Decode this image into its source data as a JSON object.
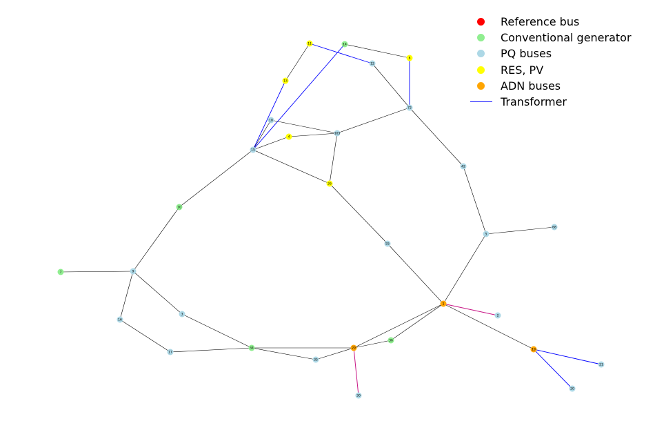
{
  "colors": {
    "reference": "#ff0000",
    "conventional": "#90ee90",
    "pq": "#add8e6",
    "res": "#ffff00",
    "adn": "#ffa500",
    "line": "#000000",
    "transformer": "#0000ff",
    "adn_line": "#c71585"
  },
  "legend": [
    {
      "label": "Reference bus",
      "marker": "dot",
      "color_key": "reference"
    },
    {
      "label": "Conventional generator",
      "marker": "dot",
      "color_key": "conventional"
    },
    {
      "label": "PQ buses",
      "marker": "dot",
      "color_key": "pq"
    },
    {
      "label": "RES, PV",
      "marker": "dot",
      "color_key": "res"
    },
    {
      "label": "ADN buses",
      "marker": "dot",
      "color_key": "adn"
    },
    {
      "label": "Transformer",
      "marker": "line",
      "color_key": "transformer"
    }
  ],
  "nodes": [
    {
      "id": "11",
      "type": "res"
    },
    {
      "id": "14",
      "type": "conventional"
    },
    {
      "id": "8",
      "type": "res"
    },
    {
      "id": "12",
      "type": "pq"
    },
    {
      "id": "13",
      "type": "res"
    },
    {
      "id": "72",
      "type": "pq"
    },
    {
      "id": "18",
      "type": "pq"
    },
    {
      "id": "4",
      "type": "res"
    },
    {
      "id": "103",
      "type": "pq"
    },
    {
      "id": "15",
      "type": "pq"
    },
    {
      "id": "42",
      "type": "pq"
    },
    {
      "id": "26",
      "type": "res"
    },
    {
      "id": "10",
      "type": "conventional"
    },
    {
      "id": "68",
      "type": "pq"
    },
    {
      "id": "5",
      "type": "pq"
    },
    {
      "id": "55",
      "type": "pq"
    },
    {
      "id": "7",
      "type": "conventional"
    },
    {
      "id": "9",
      "type": "pq"
    },
    {
      "id": "1",
      "type": "adn"
    },
    {
      "id": "2",
      "type": "pq"
    },
    {
      "id": "3",
      "type": "pq"
    },
    {
      "id": "16",
      "type": "pq"
    },
    {
      "id": "36",
      "type": "conventional"
    },
    {
      "id": "34",
      "type": "conventional"
    },
    {
      "id": "29",
      "type": "adn"
    },
    {
      "id": "19",
      "type": "adn"
    },
    {
      "id": "17",
      "type": "pq"
    },
    {
      "id": "35",
      "type": "pq"
    },
    {
      "id": "21",
      "type": "pq"
    },
    {
      "id": "20",
      "type": "pq"
    },
    {
      "id": "30",
      "type": "pq"
    }
  ],
  "edges": [
    {
      "from": "11",
      "to": "12",
      "kind": "transformer"
    },
    {
      "from": "11",
      "to": "13",
      "kind": "line"
    },
    {
      "from": "14",
      "to": "8",
      "kind": "line"
    },
    {
      "from": "14",
      "to": "15",
      "kind": "transformer"
    },
    {
      "from": "13",
      "to": "15",
      "kind": "transformer"
    },
    {
      "from": "12",
      "to": "72",
      "kind": "line"
    },
    {
      "from": "8",
      "to": "72",
      "kind": "transformer"
    },
    {
      "from": "72",
      "to": "103",
      "kind": "line"
    },
    {
      "from": "72",
      "to": "42",
      "kind": "line"
    },
    {
      "from": "18",
      "to": "15",
      "kind": "line"
    },
    {
      "from": "18",
      "to": "103",
      "kind": "line"
    },
    {
      "from": "4",
      "to": "15",
      "kind": "line"
    },
    {
      "from": "4",
      "to": "103",
      "kind": "line"
    },
    {
      "from": "103",
      "to": "26",
      "kind": "line"
    },
    {
      "from": "15",
      "to": "26",
      "kind": "line"
    },
    {
      "from": "15",
      "to": "10",
      "kind": "line"
    },
    {
      "from": "26",
      "to": "55",
      "kind": "line"
    },
    {
      "from": "42",
      "to": "5",
      "kind": "line"
    },
    {
      "from": "5",
      "to": "68",
      "kind": "line"
    },
    {
      "from": "5",
      "to": "1",
      "kind": "line"
    },
    {
      "from": "55",
      "to": "1",
      "kind": "line"
    },
    {
      "from": "10",
      "to": "9",
      "kind": "line"
    },
    {
      "from": "7",
      "to": "9",
      "kind": "line"
    },
    {
      "from": "9",
      "to": "3",
      "kind": "line"
    },
    {
      "from": "9",
      "to": "16",
      "kind": "line"
    },
    {
      "from": "3",
      "to": "34",
      "kind": "line"
    },
    {
      "from": "16",
      "to": "17",
      "kind": "line"
    },
    {
      "from": "17",
      "to": "34",
      "kind": "line"
    },
    {
      "from": "34",
      "to": "29",
      "kind": "line"
    },
    {
      "from": "34",
      "to": "35",
      "kind": "line"
    },
    {
      "from": "35",
      "to": "29",
      "kind": "line"
    },
    {
      "from": "29",
      "to": "1",
      "kind": "line"
    },
    {
      "from": "29",
      "to": "36",
      "kind": "line"
    },
    {
      "from": "36",
      "to": "1",
      "kind": "line"
    },
    {
      "from": "29",
      "to": "30",
      "kind": "adn"
    },
    {
      "from": "1",
      "to": "2",
      "kind": "adn"
    },
    {
      "from": "1",
      "to": "19",
      "kind": "line"
    },
    {
      "from": "19",
      "to": "21",
      "kind": "transformer"
    },
    {
      "from": "19",
      "to": "20",
      "kind": "transformer"
    }
  ]
}
